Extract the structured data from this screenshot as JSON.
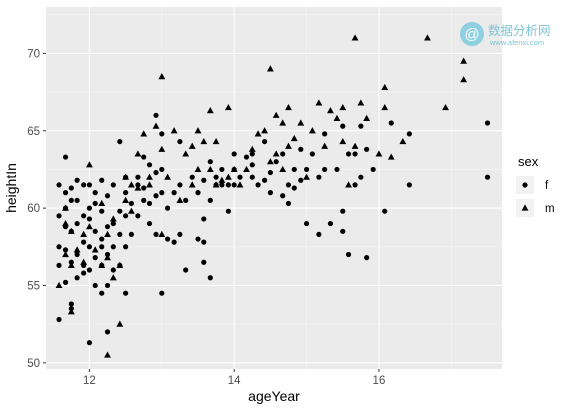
{
  "chart_data": {
    "type": "scatter",
    "title": "",
    "xlabel": "ageYear",
    "ylabel": "heightIn",
    "xlim": [
      11.4,
      17.7
    ],
    "ylim": [
      49.6,
      73.0
    ],
    "xticks": [
      12,
      14,
      16
    ],
    "xtick_labels": [
      "12",
      "14",
      "16"
    ],
    "yticks": [
      50,
      55,
      60,
      65,
      70
    ],
    "ytick_labels": [
      "50",
      "55",
      "60",
      "65",
      "70"
    ],
    "grid": true,
    "panel_background": "#ebebeb",
    "legend": {
      "title": "sex",
      "position": "right",
      "entries": [
        {
          "label": "f",
          "shape": "circle"
        },
        {
          "label": "m",
          "shape": "triangle"
        }
      ]
    },
    "series": [
      {
        "name": "f",
        "shape": "circle",
        "points": [
          [
            11.58,
            52.8
          ],
          [
            11.58,
            56.3
          ],
          [
            11.58,
            57.5
          ],
          [
            11.58,
            59.5
          ],
          [
            11.58,
            61.5
          ],
          [
            11.67,
            55.2
          ],
          [
            11.67,
            57.3
          ],
          [
            11.67,
            58.8
          ],
          [
            11.67,
            60.0
          ],
          [
            11.67,
            61.0
          ],
          [
            11.67,
            63.3
          ],
          [
            11.75,
            53.8
          ],
          [
            11.75,
            53.5
          ],
          [
            11.75,
            56.5
          ],
          [
            11.75,
            58.5
          ],
          [
            11.75,
            60.5
          ],
          [
            11.75,
            61.3
          ],
          [
            11.83,
            55.5
          ],
          [
            11.83,
            57.0
          ],
          [
            11.83,
            59.0
          ],
          [
            11.83,
            60.5
          ],
          [
            11.83,
            61.8
          ],
          [
            11.92,
            55.8
          ],
          [
            11.92,
            56.3
          ],
          [
            11.92,
            57.8
          ],
          [
            11.92,
            59.5
          ],
          [
            11.92,
            61.5
          ],
          [
            12.0,
            51.3
          ],
          [
            12.0,
            56.0
          ],
          [
            12.0,
            57.5
          ],
          [
            12.0,
            59.3
          ],
          [
            12.0,
            60.0
          ],
          [
            12.0,
            61.5
          ],
          [
            12.08,
            55.0
          ],
          [
            12.08,
            56.8
          ],
          [
            12.08,
            58.5
          ],
          [
            12.08,
            60.3
          ],
          [
            12.08,
            61.0
          ],
          [
            12.17,
            54.5
          ],
          [
            12.17,
            56.3
          ],
          [
            12.17,
            57.5
          ],
          [
            12.17,
            58.0
          ],
          [
            12.17,
            59.8
          ],
          [
            12.17,
            61.8
          ],
          [
            12.25,
            52.0
          ],
          [
            12.25,
            55.0
          ],
          [
            12.25,
            57.0
          ],
          [
            12.25,
            58.8
          ],
          [
            12.25,
            60.8
          ],
          [
            12.33,
            56.0
          ],
          [
            12.33,
            57.5
          ],
          [
            12.33,
            59.0
          ],
          [
            12.33,
            61.5
          ],
          [
            12.42,
            56.3
          ],
          [
            12.42,
            58.3
          ],
          [
            12.42,
            59.8
          ],
          [
            12.42,
            64.3
          ],
          [
            12.5,
            54.5
          ],
          [
            12.5,
            57.5
          ],
          [
            12.5,
            59.5
          ],
          [
            12.5,
            61.0
          ],
          [
            12.5,
            62.0
          ],
          [
            12.58,
            58.3
          ],
          [
            12.58,
            60.3
          ],
          [
            12.67,
            59.5
          ],
          [
            12.67,
            61.5
          ],
          [
            12.67,
            62.0
          ],
          [
            12.75,
            60.5
          ],
          [
            12.75,
            61.3
          ],
          [
            12.75,
            63.3
          ],
          [
            12.83,
            59.0
          ],
          [
            12.83,
            60.3
          ],
          [
            12.83,
            62.8
          ],
          [
            12.92,
            58.3
          ],
          [
            12.92,
            60.8
          ],
          [
            12.92,
            62.3
          ],
          [
            12.92,
            66.0
          ],
          [
            13.0,
            54.5
          ],
          [
            13.0,
            61.0
          ],
          [
            13.0,
            62.5
          ],
          [
            13.0,
            64.8
          ],
          [
            13.08,
            58.0
          ],
          [
            13.08,
            60.0
          ],
          [
            13.17,
            57.8
          ],
          [
            13.17,
            61.0
          ],
          [
            13.25,
            58.3
          ],
          [
            13.25,
            61.5
          ],
          [
            13.25,
            64.3
          ],
          [
            13.33,
            56.0
          ],
          [
            13.33,
            60.5
          ],
          [
            13.42,
            62.0
          ],
          [
            13.5,
            58.0
          ],
          [
            13.5,
            61.0
          ],
          [
            13.58,
            56.5
          ],
          [
            13.58,
            57.8
          ],
          [
            13.58,
            59.3
          ],
          [
            13.58,
            61.8
          ],
          [
            13.67,
            55.5
          ],
          [
            13.67,
            60.5
          ],
          [
            13.67,
            63.0
          ],
          [
            13.75,
            61.5
          ],
          [
            13.75,
            62.0
          ],
          [
            13.83,
            61.5
          ],
          [
            13.83,
            62.5
          ],
          [
            13.92,
            59.8
          ],
          [
            13.92,
            61.5
          ],
          [
            14.0,
            61.5
          ],
          [
            14.0,
            62.5
          ],
          [
            14.0,
            63.5
          ],
          [
            14.08,
            62.0
          ],
          [
            14.17,
            63.3
          ],
          [
            14.25,
            62.0
          ],
          [
            14.25,
            62.8
          ],
          [
            14.25,
            63.5
          ],
          [
            14.33,
            61.5
          ],
          [
            14.42,
            61.8
          ],
          [
            14.42,
            64.3
          ],
          [
            14.5,
            61.0
          ],
          [
            14.5,
            62.3
          ],
          [
            14.58,
            63.0
          ],
          [
            14.67,
            60.8
          ],
          [
            14.67,
            63.5
          ],
          [
            14.75,
            60.3
          ],
          [
            14.75,
            61.5
          ],
          [
            14.83,
            61.3
          ],
          [
            14.83,
            62.5
          ],
          [
            14.92,
            61.8
          ],
          [
            14.92,
            63.8
          ],
          [
            15.0,
            59.0
          ],
          [
            15.0,
            62.5
          ],
          [
            15.08,
            63.5
          ],
          [
            15.17,
            58.3
          ],
          [
            15.17,
            62.0
          ],
          [
            15.25,
            62.5
          ],
          [
            15.25,
            64.8
          ],
          [
            15.33,
            59.0
          ],
          [
            15.42,
            62.5
          ],
          [
            15.5,
            58.5
          ],
          [
            15.5,
            59.8
          ],
          [
            15.5,
            65.3
          ],
          [
            15.58,
            57.0
          ],
          [
            15.58,
            63.5
          ],
          [
            15.67,
            61.5
          ],
          [
            15.67,
            63.5
          ],
          [
            15.75,
            62.0
          ],
          [
            15.75,
            65.3
          ],
          [
            15.83,
            56.8
          ],
          [
            15.83,
            63.8
          ],
          [
            15.92,
            62.5
          ],
          [
            16.08,
            59.8
          ],
          [
            16.17,
            65.5
          ],
          [
            16.42,
            61.5
          ],
          [
            16.42,
            64.8
          ],
          [
            17.5,
            65.5
          ],
          [
            17.5,
            62.0
          ]
        ]
      },
      {
        "name": "m",
        "shape": "triangle",
        "points": [
          [
            11.58,
            55.0
          ],
          [
            11.67,
            57.0
          ],
          [
            11.67,
            59.0
          ],
          [
            11.67,
            60.0
          ],
          [
            11.75,
            53.3
          ],
          [
            11.75,
            56.3
          ],
          [
            11.75,
            58.5
          ],
          [
            11.83,
            57.3
          ],
          [
            11.92,
            56.5
          ],
          [
            11.92,
            58.3
          ],
          [
            12.0,
            58.8
          ],
          [
            12.0,
            62.8
          ],
          [
            12.08,
            57.3
          ],
          [
            12.17,
            56.3
          ],
          [
            12.17,
            60.3
          ],
          [
            12.25,
            50.5
          ],
          [
            12.25,
            56.8
          ],
          [
            12.25,
            58.3
          ],
          [
            12.33,
            55.5
          ],
          [
            12.33,
            59.3
          ],
          [
            12.42,
            52.5
          ],
          [
            12.42,
            56.3
          ],
          [
            12.5,
            60.5
          ],
          [
            12.5,
            62.0
          ],
          [
            12.58,
            59.8
          ],
          [
            12.58,
            61.5
          ],
          [
            12.67,
            61.3
          ],
          [
            12.67,
            63.5
          ],
          [
            12.75,
            64.8
          ],
          [
            12.83,
            61.5
          ],
          [
            12.83,
            62.0
          ],
          [
            12.92,
            65.3
          ],
          [
            13.0,
            58.3
          ],
          [
            13.0,
            63.8
          ],
          [
            13.0,
            68.5
          ],
          [
            13.08,
            62.0
          ],
          [
            13.17,
            65.0
          ],
          [
            13.25,
            60.5
          ],
          [
            13.33,
            63.5
          ],
          [
            13.42,
            61.5
          ],
          [
            13.42,
            64.0
          ],
          [
            13.5,
            62.5
          ],
          [
            13.5,
            65.0
          ],
          [
            13.58,
            64.3
          ],
          [
            13.67,
            62.5
          ],
          [
            13.67,
            66.3
          ],
          [
            13.75,
            61.5
          ],
          [
            13.75,
            64.3
          ],
          [
            13.83,
            61.8
          ],
          [
            13.92,
            62.0
          ],
          [
            13.92,
            66.5
          ],
          [
            14.0,
            62.5
          ],
          [
            14.08,
            61.5
          ],
          [
            14.17,
            62.5
          ],
          [
            14.25,
            63.8
          ],
          [
            14.33,
            64.8
          ],
          [
            14.42,
            65.0
          ],
          [
            14.5,
            63.0
          ],
          [
            14.5,
            69.0
          ],
          [
            14.58,
            63.5
          ],
          [
            14.58,
            66.0
          ],
          [
            14.67,
            62.5
          ],
          [
            14.67,
            65.5
          ],
          [
            14.75,
            64.0
          ],
          [
            14.75,
            66.5
          ],
          [
            14.83,
            64.5
          ],
          [
            14.92,
            65.5
          ],
          [
            15.0,
            62.0
          ],
          [
            15.08,
            65.0
          ],
          [
            15.17,
            66.8
          ],
          [
            15.25,
            64.0
          ],
          [
            15.33,
            66.3
          ],
          [
            15.42,
            65.8
          ],
          [
            15.5,
            64.3
          ],
          [
            15.5,
            66.5
          ],
          [
            15.58,
            61.5
          ],
          [
            15.67,
            64.0
          ],
          [
            15.67,
            71.0
          ],
          [
            15.75,
            66.8
          ],
          [
            15.83,
            65.8
          ],
          [
            16.0,
            63.5
          ],
          [
            16.08,
            67.8
          ],
          [
            16.08,
            66.5
          ],
          [
            16.17,
            63.3
          ],
          [
            16.33,
            64.3
          ],
          [
            16.67,
            71.0
          ],
          [
            16.92,
            66.5
          ],
          [
            17.17,
            68.3
          ],
          [
            17.17,
            69.5
          ]
        ]
      }
    ]
  },
  "watermark": {
    "brand_name": "数据分析网",
    "brand_url": "www.afenxi.com",
    "brand_color": "#7fc4d6"
  }
}
